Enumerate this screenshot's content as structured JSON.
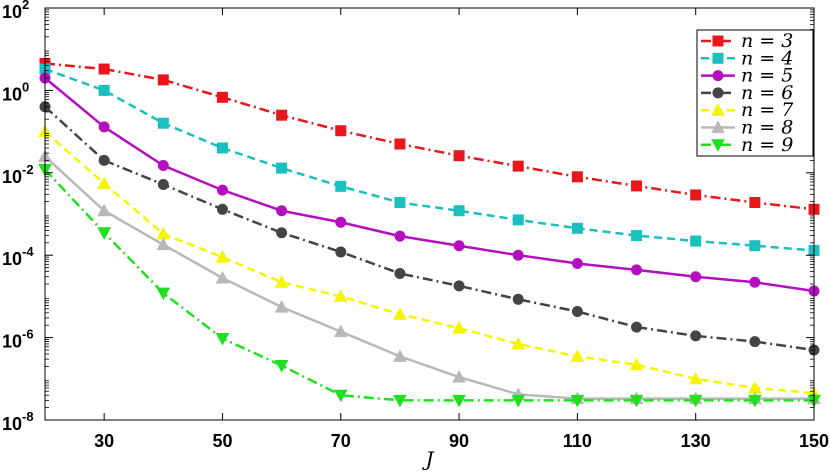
{
  "chart_data": {
    "type": "line",
    "xlabel": "J",
    "ylabel": "",
    "title": "",
    "xlim": [
      20,
      150
    ],
    "ylim_log10": [
      -8,
      2
    ],
    "yscale": "log",
    "xticks": [
      30,
      50,
      70,
      90,
      110,
      130,
      150
    ],
    "yticks": [
      {
        "base": "10",
        "exp": "2",
        "value": 100
      },
      {
        "base": "10",
        "exp": "0",
        "value": 1
      },
      {
        "base": "10",
        "exp": "-2",
        "value": 0.01
      },
      {
        "base": "10",
        "exp": "-4",
        "value": 0.0001
      },
      {
        "base": "10",
        "exp": "-6",
        "value": 1e-06
      },
      {
        "base": "10",
        "exp": "-8",
        "value": 1e-08
      }
    ],
    "grid": false,
    "legend_position": "top-right",
    "x": [
      20,
      30,
      40,
      50,
      60,
      70,
      80,
      90,
      100,
      110,
      120,
      130,
      140,
      150
    ],
    "series": [
      {
        "name": "n = 3",
        "color": "#e8171b",
        "dash": "dashdot",
        "marker": "square",
        "values": [
          4.5,
          3.3,
          1.8,
          0.68,
          0.25,
          0.105,
          0.05,
          0.026,
          0.0145,
          0.008,
          0.0048,
          0.0029,
          0.0019,
          0.0013
        ]
      },
      {
        "name": "n = 4",
        "color": "#1bbfbf",
        "dash": "dashed",
        "marker": "square",
        "values": [
          3.3,
          1.0,
          0.16,
          0.04,
          0.013,
          0.0047,
          0.0019,
          0.0012,
          0.00072,
          0.00045,
          0.0003,
          0.00022,
          0.00017,
          0.00013
        ]
      },
      {
        "name": "n = 5",
        "color": "#b40fbf",
        "dash": "solid",
        "marker": "circle",
        "values": [
          2.0,
          0.13,
          0.015,
          0.0038,
          0.0012,
          0.00063,
          0.00029,
          0.00017,
          0.0001,
          6.3e-05,
          4.4e-05,
          3e-05,
          2.2e-05,
          1.35e-05
        ]
      },
      {
        "name": "n = 6",
        "color": "#444444",
        "dash": "dashdot",
        "marker": "circle",
        "values": [
          0.4,
          0.02,
          0.0052,
          0.0013,
          0.00035,
          0.00012,
          3.6e-05,
          1.8e-05,
          8.5e-06,
          4.3e-06,
          1.8e-06,
          1.1e-06,
          8e-07,
          5e-07
        ]
      },
      {
        "name": "n = 7",
        "color": "#f5f500",
        "dash": "dashed",
        "marker": "triangle-up",
        "values": [
          0.1,
          0.0055,
          0.00033,
          9e-05,
          2.2e-05,
          1e-05,
          3.7e-06,
          1.7e-06,
          7e-07,
          3.5e-07,
          2.2e-07,
          1e-07,
          6e-08,
          4.5e-08
        ]
      },
      {
        "name": "n = 8",
        "color": "#b8b8b8",
        "dash": "solid",
        "marker": "triangle-up",
        "values": [
          0.025,
          0.0012,
          0.00018,
          2.8e-05,
          5.5e-06,
          1.4e-06,
          3.5e-07,
          1.1e-07,
          4.2e-08,
          3.3e-08,
          3.3e-08,
          3.3e-08,
          3.3e-08,
          3.3e-08
        ]
      },
      {
        "name": "n = 9",
        "color": "#20e020",
        "dash": "dashdot",
        "marker": "triangle-down",
        "values": [
          0.012,
          0.00035,
          1.2e-05,
          9.5e-07,
          2.1e-07,
          4e-08,
          3e-08,
          3e-08,
          3e-08,
          3e-08,
          3e-08,
          3e-08,
          3e-08,
          3e-08
        ]
      }
    ]
  }
}
